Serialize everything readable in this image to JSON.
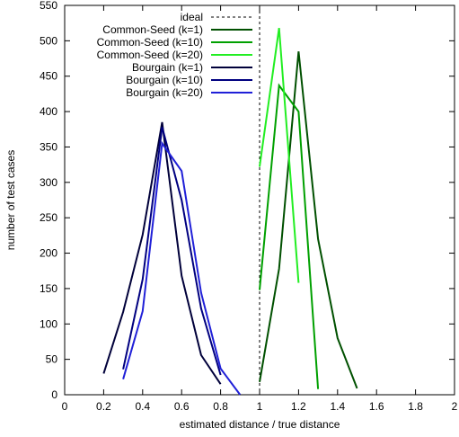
{
  "chart_data": {
    "type": "line",
    "xlabel": "estimated distance / true distance",
    "ylabel": "number of test cases",
    "xlim": [
      0,
      2
    ],
    "ylim": [
      0,
      550
    ],
    "xticks": [
      0,
      0.2,
      0.4,
      0.6,
      0.8,
      1,
      1.2,
      1.4,
      1.6,
      1.8,
      2
    ],
    "xtick_labels": [
      "0",
      "0.2",
      "0.4",
      "0.6",
      "0.8",
      "1",
      "1.2",
      "1.4",
      "1.6",
      "1.8",
      "2"
    ],
    "yticks": [
      0,
      50,
      100,
      150,
      200,
      250,
      300,
      350,
      400,
      450,
      500,
      550
    ],
    "ytick_labels": [
      "0",
      "50",
      "100",
      "150",
      "200",
      "250",
      "300",
      "350",
      "400",
      "450",
      "500",
      "550"
    ],
    "grid": false,
    "legend_position": "top-left",
    "reference_line": {
      "name": "ideal",
      "x": 1,
      "color": "#000000",
      "style": "dashed"
    },
    "series": [
      {
        "name": "Common-Seed (k=1)",
        "color": "#005000",
        "points": [
          [
            1.0,
            18
          ],
          [
            1.1,
            178
          ],
          [
            1.2,
            485
          ],
          [
            1.3,
            220
          ],
          [
            1.4,
            80
          ],
          [
            1.5,
            9
          ]
        ]
      },
      {
        "name": "Common-Seed (k=10)",
        "color": "#00a000",
        "points": [
          [
            1.0,
            148
          ],
          [
            1.1,
            437
          ],
          [
            1.2,
            400
          ],
          [
            1.3,
            8
          ]
        ]
      },
      {
        "name": "Common-Seed (k=20)",
        "color": "#22ee22",
        "points": [
          [
            1.0,
            322
          ],
          [
            1.1,
            518
          ],
          [
            1.2,
            158
          ]
        ]
      },
      {
        "name": "Bourgain (k=1)",
        "color": "#00003a",
        "points": [
          [
            0.2,
            30
          ],
          [
            0.3,
            117
          ],
          [
            0.4,
            226
          ],
          [
            0.5,
            385
          ],
          [
            0.6,
            168
          ],
          [
            0.7,
            56
          ],
          [
            0.8,
            15
          ]
        ]
      },
      {
        "name": "Bourgain (k=10)",
        "color": "#000080",
        "points": [
          [
            0.3,
            36
          ],
          [
            0.4,
            163
          ],
          [
            0.5,
            378
          ],
          [
            0.6,
            275
          ],
          [
            0.7,
            122
          ],
          [
            0.8,
            28
          ]
        ]
      },
      {
        "name": "Bourgain (k=20)",
        "color": "#2020d8",
        "points": [
          [
            0.3,
            22
          ],
          [
            0.4,
            118
          ],
          [
            0.5,
            355
          ],
          [
            0.6,
            316
          ],
          [
            0.7,
            144
          ],
          [
            0.8,
            37
          ],
          [
            0.9,
            0
          ]
        ]
      }
    ]
  }
}
